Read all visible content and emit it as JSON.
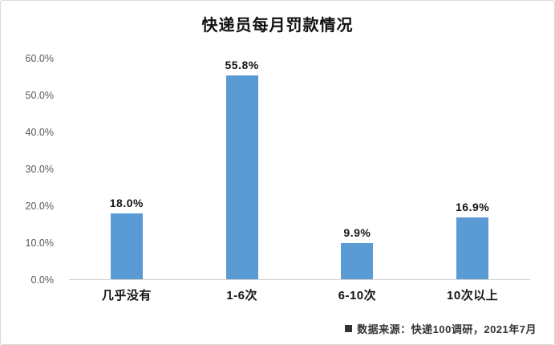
{
  "title": "快递员每月罚款情况",
  "footer": {
    "source_text": "数据来源：快递100调研，2021年7月"
  },
  "chart_data": {
    "type": "bar",
    "title": "快递员每月罚款情况",
    "categories": [
      "几乎没有",
      "1-6次",
      "6-10次",
      "10次以上"
    ],
    "values": [
      18.0,
      55.8,
      9.9,
      16.9
    ],
    "value_labels": [
      "18.0%",
      "55.8%",
      "9.9%",
      "16.9%"
    ],
    "xlabel": "",
    "ylabel": "",
    "ylim": [
      0,
      60
    ],
    "ytick_step": 10,
    "ytick_labels": [
      "0.0%",
      "10.0%",
      "20.0%",
      "30.0%",
      "40.0%",
      "50.0%",
      "60.0%"
    ],
    "grid": false,
    "legend": false,
    "bar_color": "#5b9bd5",
    "axis_color": "#d2d2d2",
    "label_color": "#595959"
  }
}
